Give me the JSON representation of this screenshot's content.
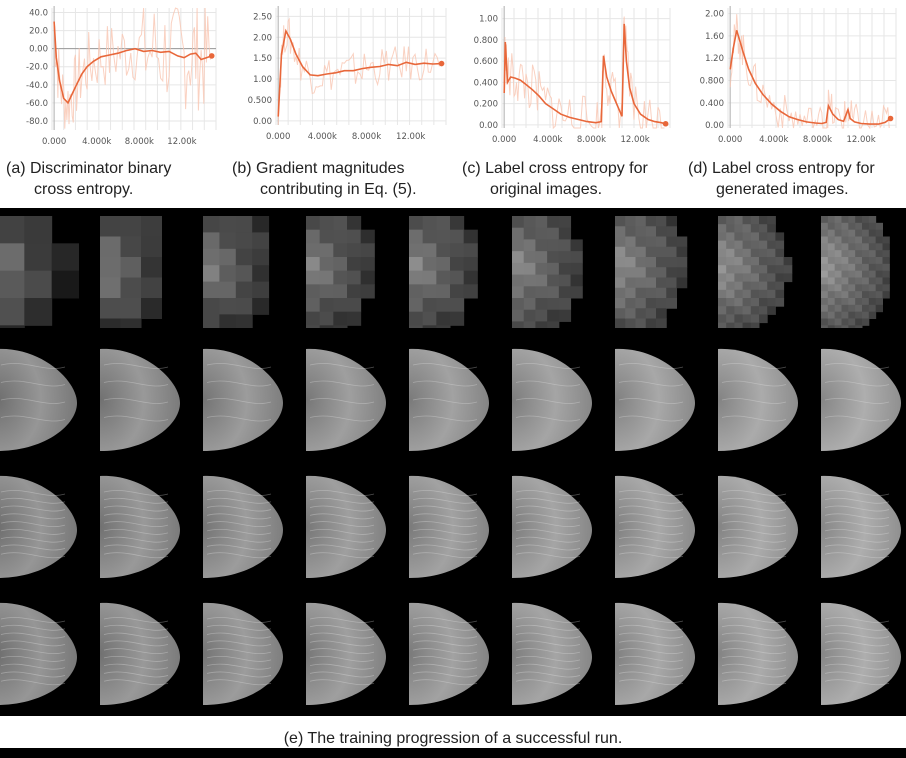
{
  "chart_data": [
    {
      "type": "line",
      "panel_label": "(a)",
      "caption_line1": "(a) Discriminator binary",
      "caption_line2": "cross entropy.",
      "yticks": [
        "40.0",
        "20.0",
        "0.00",
        "-20.0",
        "-40.0",
        "-60.0",
        "-80.0"
      ],
      "xticks": [
        "0.000",
        "4.000k",
        "8.000k",
        "12.00k"
      ],
      "ylim": [
        -90,
        45
      ],
      "xlim": [
        -200,
        15200
      ],
      "x": [
        0,
        200,
        500,
        900,
        1300,
        1700,
        2100,
        2600,
        3100,
        3700,
        4400,
        5200,
        6000,
        6800,
        7600,
        8400,
        9200,
        10000,
        10800,
        11600,
        12200,
        12800,
        13300,
        13800,
        14300,
        14800
      ],
      "values": [
        30,
        -10,
        -35,
        -55,
        -60,
        -50,
        -40,
        -28,
        -20,
        -14,
        -9,
        -7,
        -5,
        -2,
        0,
        -3,
        -2,
        -4,
        -3,
        -8,
        -10,
        -6,
        -5,
        -12,
        -10,
        -8
      ],
      "series_color": "#e8673a",
      "band_color": "#f9c5b2"
    },
    {
      "type": "line",
      "panel_label": "(b)",
      "caption_line1": "(b) Gradient magnitudes",
      "caption_line2": "contributing in Eq. (5).",
      "yticks": [
        "2.50",
        "2.00",
        "1.50",
        "1.00",
        "0.500",
        "0.00"
      ],
      "xticks": [
        "0.000",
        "4.000k",
        "8.000k",
        "12.00k"
      ],
      "ylim": [
        -0.1,
        2.7
      ],
      "xlim": [
        -200,
        15200
      ],
      "x": [
        0,
        300,
        700,
        1100,
        1600,
        2200,
        2900,
        3600,
        4400,
        5200,
        6000,
        6800,
        7600,
        8400,
        9200,
        10000,
        10800,
        11600,
        12400,
        13200,
        14000,
        14800
      ],
      "values": [
        0.1,
        1.6,
        2.15,
        1.95,
        1.6,
        1.3,
        1.1,
        1.08,
        1.12,
        1.15,
        1.2,
        1.2,
        1.25,
        1.28,
        1.3,
        1.35,
        1.32,
        1.4,
        1.35,
        1.38,
        1.36,
        1.37
      ],
      "series_color": "#e8673a",
      "band_color": "#f9c5b2"
    },
    {
      "type": "line",
      "panel_label": "(c)",
      "caption_line1": "(c) Label cross entropy for",
      "caption_line2": "original images.",
      "yticks": [
        "1.00",
        "0.800",
        "0.600",
        "0.400",
        "0.200",
        "0.00"
      ],
      "xticks": [
        "0.000",
        "4.000k",
        "8.000k",
        "12.00k"
      ],
      "ylim": [
        -0.03,
        1.1
      ],
      "xlim": [
        -200,
        15200
      ],
      "x": [
        0,
        100,
        300,
        600,
        1000,
        1500,
        2000,
        2600,
        3200,
        3800,
        4500,
        5200,
        6000,
        6800,
        7600,
        8400,
        8900,
        9100,
        9400,
        9800,
        10300,
        10800,
        11000,
        11200,
        11500,
        11900,
        12500,
        13200,
        13800,
        14400,
        14800
      ],
      "values": [
        0.3,
        0.78,
        0.4,
        0.45,
        0.44,
        0.42,
        0.38,
        0.33,
        0.27,
        0.2,
        0.15,
        0.1,
        0.07,
        0.05,
        0.03,
        0.02,
        0.03,
        0.65,
        0.45,
        0.32,
        0.2,
        0.08,
        0.95,
        0.6,
        0.35,
        0.2,
        0.1,
        0.05,
        0.03,
        0.02,
        0.01
      ],
      "series_color": "#e8673a",
      "band_color": "#f9c5b2"
    },
    {
      "type": "line",
      "panel_label": "(d)",
      "caption_line1": "(d) Label cross entropy for",
      "caption_line2": "generated images.",
      "yticks": [
        "2.00",
        "1.60",
        "1.20",
        "0.800",
        "0.400",
        "0.00"
      ],
      "xticks": [
        "0.000",
        "4.000k",
        "8.000k",
        "12.00k"
      ],
      "ylim": [
        -0.05,
        2.1
      ],
      "xlim": [
        -200,
        15200
      ],
      "x": [
        0,
        300,
        600,
        900,
        1200,
        1700,
        2300,
        3000,
        3800,
        4600,
        5400,
        6200,
        7000,
        7800,
        8400,
        8800,
        9000,
        9400,
        9900,
        10400,
        10800,
        11000,
        11400,
        12000,
        12800,
        13600,
        14200,
        14700
      ],
      "values": [
        1.0,
        1.4,
        1.7,
        1.5,
        1.3,
        1.0,
        0.75,
        0.55,
        0.38,
        0.25,
        0.15,
        0.1,
        0.06,
        0.04,
        0.03,
        0.05,
        0.35,
        0.2,
        0.1,
        0.07,
        0.28,
        0.12,
        0.06,
        0.03,
        0.02,
        0.02,
        0.05,
        0.12
      ],
      "series_color": "#e8673a",
      "band_color": "#f9c5b2"
    }
  ],
  "figure_e": {
    "caption": "(e) The training progression of a successful run.",
    "rows": 4,
    "columns": 9
  }
}
